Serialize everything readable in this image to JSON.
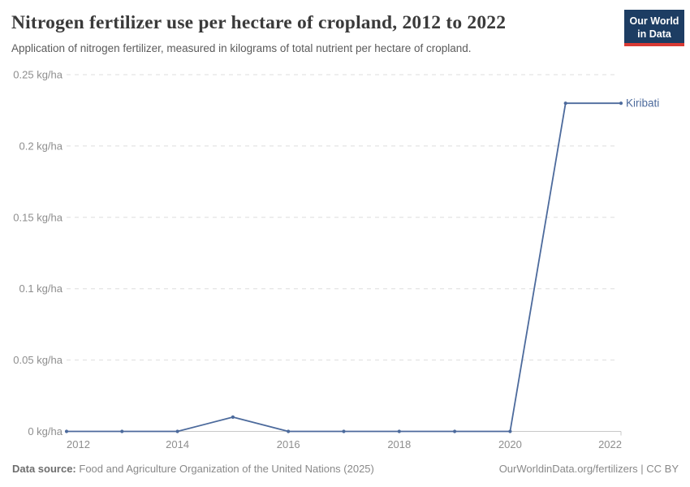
{
  "header": {
    "title": "Nitrogen fertilizer use per hectare of cropland, 2012 to 2022",
    "subtitle": "Application of nitrogen fertilizer, measured in kilograms of total nutrient per hectare of cropland.",
    "logo": {
      "line1": "Our World",
      "line2": "in Data",
      "bg_color": "#1d3d63",
      "accent_color": "#d93a34"
    }
  },
  "chart_data": {
    "type": "line",
    "title": "Nitrogen fertilizer use per hectare of cropland, 2012 to 2022",
    "xlabel": "",
    "ylabel": "kg/ha",
    "x": [
      2012,
      2013,
      2014,
      2015,
      2016,
      2017,
      2018,
      2019,
      2020,
      2021,
      2022
    ],
    "series": [
      {
        "name": "Kiribati",
        "color": "#4C6A9C",
        "values": [
          0,
          0,
          0,
          0.01,
          0,
          0,
          0,
          0,
          0,
          0.23,
          0.23
        ]
      }
    ],
    "xlim": [
      2012,
      2022
    ],
    "ylim": [
      0,
      0.25
    ],
    "x_ticks": [
      2012,
      2014,
      2016,
      2018,
      2020,
      2022
    ],
    "y_ticks": [
      0,
      0.05,
      0.1,
      0.15,
      0.2,
      0.25
    ],
    "y_unit": " kg/ha",
    "grid": "horizontal-dashed",
    "legend_position": "right-end-of-line",
    "axis_color": "#c8c8c8",
    "grid_color": "#dddddd",
    "tick_label_color": "#8e8e8e"
  },
  "footer": {
    "source_label": "Data source:",
    "source_text": "Food and Agriculture Organization of the United Nations (2025)",
    "right_text": "OurWorldinData.org/fertilizers | CC BY"
  }
}
